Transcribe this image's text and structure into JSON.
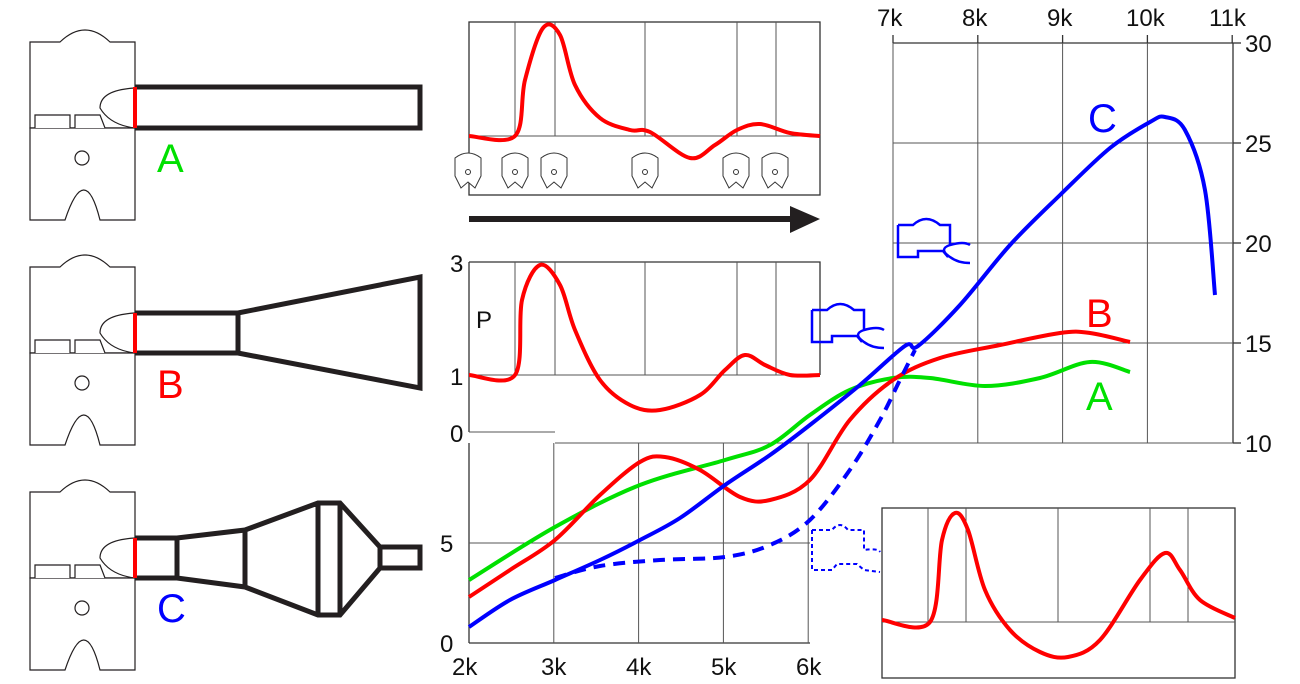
{
  "variants": [
    {
      "label": "A",
      "color": "#00e000"
    },
    {
      "label": "B",
      "color": "#ff0000"
    },
    {
      "label": "C",
      "color": "#0000ff"
    }
  ],
  "pressure_axis": {
    "symbol": "P",
    "ticks": [
      "3",
      "1",
      "0"
    ]
  },
  "colors": {
    "pressure": "#ff0000",
    "arrow": "#231f20",
    "grid": "#555555"
  },
  "chart_data": {
    "type": "line",
    "xlabel": "",
    "ylabel": "",
    "x_ticks_bottom": [
      "2k",
      "3k",
      "4k",
      "5k",
      "6k"
    ],
    "x_ticks_top": [
      "7k",
      "8k",
      "9k",
      "10k",
      "11k"
    ],
    "y_ticks_left": [
      "0",
      "5"
    ],
    "y_ticks_right": [
      "10",
      "15",
      "20",
      "25",
      "30"
    ],
    "xlim": [
      2000,
      11000
    ],
    "ylim": [
      0,
      30
    ],
    "grid": true,
    "series": [
      {
        "name": "A",
        "color": "#00e000",
        "style": "solid",
        "x": [
          2000,
          3014,
          4016,
          5019,
          5550,
          6020,
          6490,
          7000,
          7436,
          8085,
          8733,
          9323,
          9795
        ],
        "y": [
          3.15,
          5.8,
          7.9,
          9.15,
          9.9,
          11.4,
          12.65,
          13.25,
          13.25,
          12.85,
          13.25,
          14.05,
          13.55
        ]
      },
      {
        "name": "B",
        "color": "#ff0000",
        "style": "solid",
        "x": [
          2000,
          2483,
          3014,
          3545,
          4016,
          4311,
          4724,
          5196,
          5550,
          6020,
          6490,
          7000,
          7554,
          8262,
          8970,
          9323,
          9795
        ],
        "y": [
          2.3,
          3.65,
          5.15,
          7.4,
          9.05,
          9.3,
          8.65,
          7.3,
          7.15,
          8.15,
          11.15,
          13.15,
          14.25,
          14.9,
          15.5,
          15.5,
          15.05
        ]
      },
      {
        "name": "C",
        "color": "#0000ff",
        "style": "solid",
        "x": [
          2000,
          2483,
          3014,
          3545,
          4016,
          4488,
          5019,
          5550,
          6020,
          6610,
          7140,
          7295,
          7790,
          8380,
          8970,
          9559,
          10031,
          10208,
          10443,
          10679,
          10797
        ],
        "y": [
          0.8,
          2.15,
          3.15,
          4.15,
          5.15,
          6.25,
          7.9,
          9.4,
          10.9,
          12.9,
          14.85,
          14.85,
          16.9,
          19.9,
          22.4,
          24.75,
          26.05,
          26.3,
          25.65,
          22.65,
          17.4
        ]
      },
      {
        "color": "#0000ff",
        "style": "dashed",
        "x": [
          3014,
          3545,
          4252,
          5019,
          5550,
          6020,
          6490,
          6846,
          7082,
          7259
        ],
        "y": [
          3.25,
          3.85,
          4.15,
          4.3,
          4.9,
          6.15,
          8.65,
          11.15,
          13.15,
          14.65
        ]
      }
    ]
  }
}
